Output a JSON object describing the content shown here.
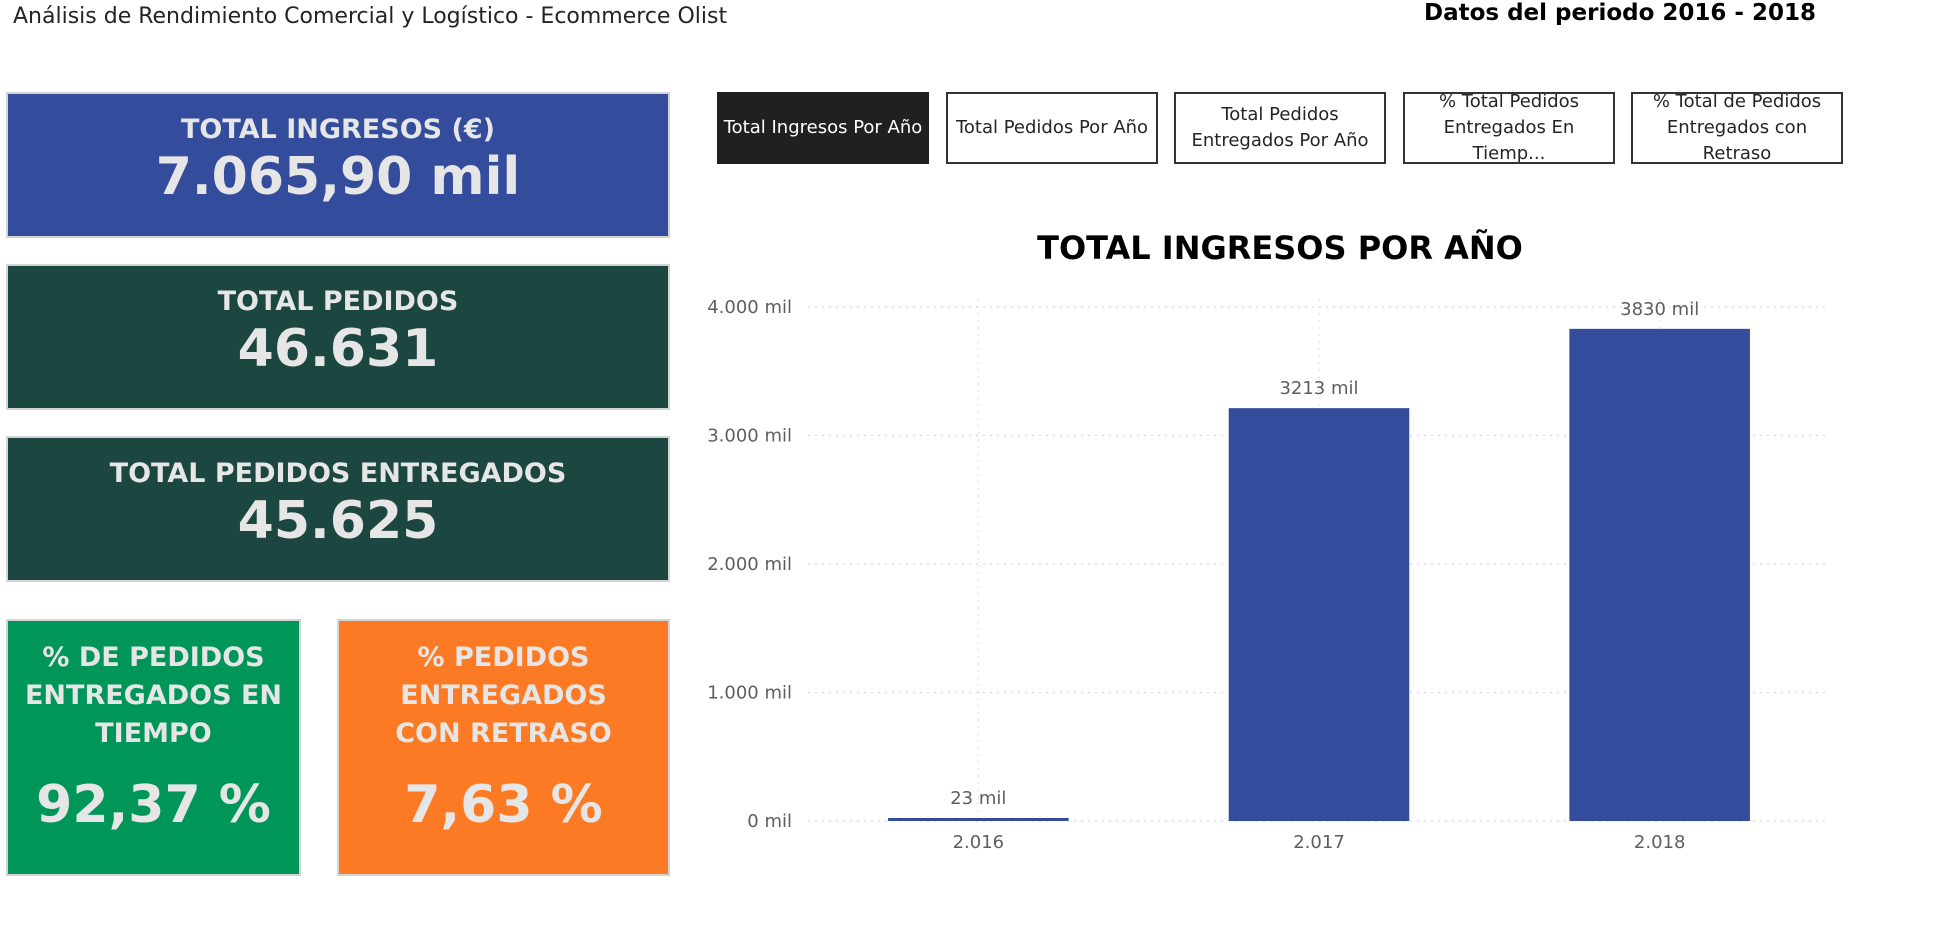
{
  "header": {
    "title": "Análisis de Rendimiento Comercial y Logístico - Ecommerce Olist",
    "period": "Datos del periodo 2016 - 2018"
  },
  "kpis": {
    "ingresos": {
      "title": "TOTAL INGRESOS (€)",
      "value": "7.065,90 mil",
      "color": "#344c9c"
    },
    "pedidos": {
      "title": "TOTAL PEDIDOS",
      "value": "46.631",
      "color": "#1c4640"
    },
    "entregados": {
      "title": "TOTAL PEDIDOS ENTREGADOS",
      "value": "45.625",
      "color": "#1c4640"
    },
    "tiempo": {
      "title": "% DE PEDIDOS ENTREGADOS EN TIEMPO",
      "value": "92,37 %",
      "color": "#00965a"
    },
    "retraso": {
      "title": "% PEDIDOS ENTREGADOS CON RETRASO",
      "value": "7,63 %",
      "color": "#fd7a24"
    }
  },
  "buttons": [
    {
      "label": "Total Ingresos Por Año",
      "active": true
    },
    {
      "label": "Total Pedidos Por Año",
      "active": false
    },
    {
      "label": "Total Pedidos\nEntregados Por Año",
      "active": false
    },
    {
      "label": "% Total Pedidos\nEntregados En Tiemp...",
      "active": false
    },
    {
      "label": "% Total de Pedidos\nEntregados con Retraso",
      "active": false
    }
  ],
  "chart_data": {
    "type": "bar",
    "title": "TOTAL INGRESOS POR AÑO",
    "categories": [
      "2.016",
      "2.017",
      "2.018"
    ],
    "values": [
      23,
      3213,
      3830
    ],
    "data_labels": [
      "23 mil",
      "3213 mil",
      "3830 mil"
    ],
    "yticks": [
      0,
      1000,
      2000,
      3000,
      4000
    ],
    "ytick_labels": [
      "0 mil",
      "1.000 mil",
      "2.000 mil",
      "3.000 mil",
      "4.000 mil"
    ],
    "ylim": [
      0,
      4000
    ],
    "bar_color": "#344c9c",
    "grid": true
  }
}
